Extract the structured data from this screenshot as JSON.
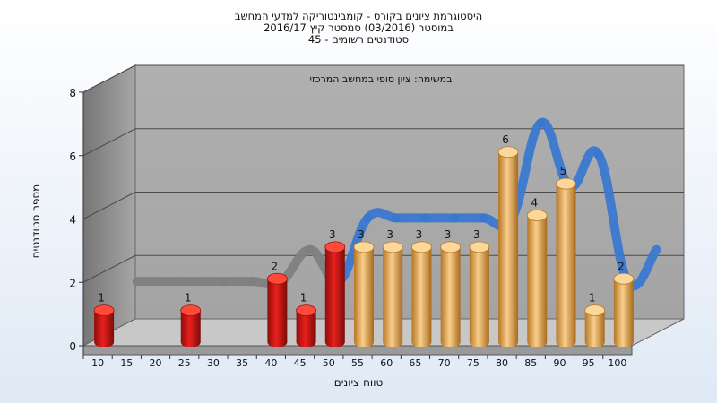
{
  "titles": {
    "line1": "היסטוגרמת ציונים בקורס - קומבינטוריקה למדעי המחשב",
    "line2": "במוסטר   (03/2016)  סמסטר קיץ  2016/17",
    "line3": "סטודנטים רשומים - 45"
  },
  "chart_data": {
    "type": "bar",
    "subtitle": "במשימה: ציון סופי במחשב המרכזי",
    "xlabel": "טווח ציונים",
    "ylabel": "מספר סטודנטים",
    "ylim": [
      0,
      8
    ],
    "yticks": [
      "0",
      "2",
      "4",
      "6",
      "8"
    ],
    "categories": [
      "10",
      "15",
      "20",
      "25",
      "30",
      "35",
      "40",
      "45",
      "50",
      "55",
      "60",
      "65",
      "70",
      "75",
      "80",
      "85",
      "90",
      "95",
      "100"
    ],
    "values": [
      1,
      null,
      null,
      1,
      null,
      null,
      2,
      1,
      3,
      3,
      3,
      3,
      3,
      3,
      6,
      4,
      5,
      1,
      2
    ],
    "fail_threshold": 55,
    "colors": {
      "fail": "#e8201c",
      "pass": "#eda94a",
      "curve_low": "#808080",
      "curve_high": "#3a78d0",
      "wall": "#8c8c8c",
      "floor": "#c8c8c8"
    }
  }
}
